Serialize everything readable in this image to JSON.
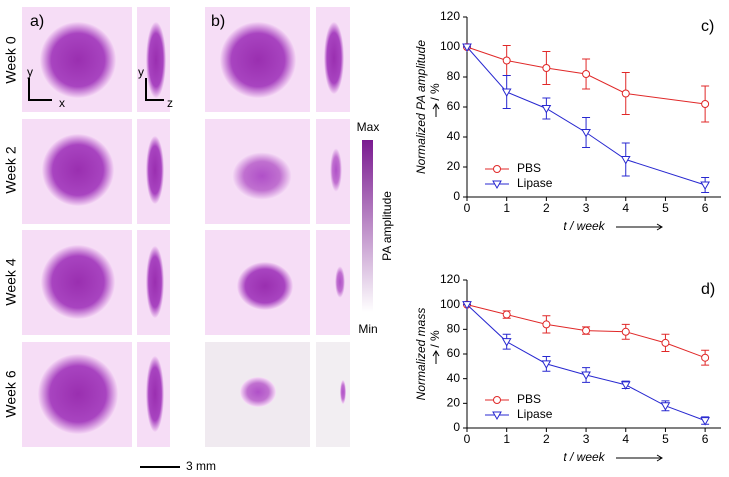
{
  "figure": {
    "panel_a": "a)",
    "panel_b": "b)",
    "weeks": [
      "Week 0",
      "Week 2",
      "Week 4",
      "Week 6"
    ],
    "axes_a": [
      "y",
      "x"
    ],
    "axes_b": [
      "y",
      "z"
    ],
    "colorbar_max": "Max",
    "colorbar_min": "Min",
    "colorbar_label": "PA amplitude",
    "scale_bar": "3 mm"
  },
  "chart_data": [
    {
      "type": "line",
      "panel": "c)",
      "ylabel": "Normalized PA amplitude",
      "yunit": "/ %",
      "xlabel": "t / week",
      "x": [
        0,
        1,
        2,
        3,
        4,
        6
      ],
      "xlim": [
        0,
        6.4
      ],
      "xticks": [
        0,
        1,
        2,
        3,
        4,
        5,
        6
      ],
      "ylim": [
        0,
        120
      ],
      "yticks": [
        0,
        20,
        40,
        60,
        80,
        100,
        120
      ],
      "legend": "lower left",
      "series": [
        {
          "name": "PBS",
          "color": "#e02828",
          "marker": "circle",
          "values": [
            100,
            91,
            86,
            82,
            69,
            62
          ],
          "errors": [
            0,
            10,
            11,
            10,
            14,
            12
          ]
        },
        {
          "name": "Lipase",
          "color": "#2828d0",
          "marker": "triangle-down",
          "values": [
            100,
            70,
            59,
            43,
            25,
            8
          ],
          "errors": [
            0,
            11,
            7,
            10,
            11,
            5
          ]
        }
      ]
    },
    {
      "type": "line",
      "panel": "d)",
      "ylabel": "Normalized mass",
      "yunit": "/ %",
      "xlabel": "t / week",
      "x": [
        0,
        1,
        2,
        3,
        4,
        5,
        6
      ],
      "xlim": [
        0,
        6.4
      ],
      "xticks": [
        0,
        1,
        2,
        3,
        4,
        5,
        6
      ],
      "ylim": [
        0,
        120
      ],
      "yticks": [
        0,
        20,
        40,
        60,
        80,
        100,
        120
      ],
      "legend": "lower left",
      "series": [
        {
          "name": "PBS",
          "color": "#e02828",
          "marker": "circle",
          "values": [
            100,
            92,
            84,
            79,
            78,
            69,
            57
          ],
          "errors": [
            0,
            3,
            7,
            3,
            6,
            7,
            6
          ]
        },
        {
          "name": "Lipase",
          "color": "#2828d0",
          "marker": "triangle-down",
          "values": [
            100,
            70,
            52,
            43,
            35,
            18,
            6
          ],
          "errors": [
            0,
            6,
            6,
            6,
            3,
            4,
            3
          ]
        }
      ]
    }
  ]
}
